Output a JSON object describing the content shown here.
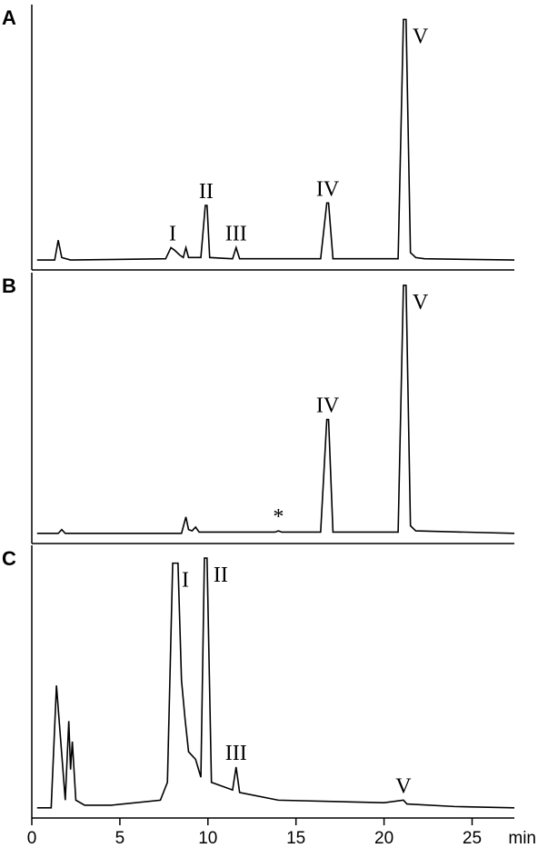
{
  "chart_data": [
    {
      "type": "line",
      "panel_label": "A",
      "xlim": [
        0,
        27.4
      ],
      "ylim": [
        -4,
        103
      ],
      "x": [
        0.3,
        1.3,
        1.5,
        1.7,
        2.2,
        7.6,
        7.9,
        8.1,
        8.4,
        8.6,
        8.75,
        8.9,
        9.6,
        9.85,
        9.95,
        10.1,
        11.4,
        11.6,
        11.8,
        12.5,
        16.4,
        16.75,
        16.85,
        17.1,
        20.8,
        21.1,
        21.25,
        21.5,
        21.8,
        22.3,
        27.4
      ],
      "series": [
        {
          "color": "#000000",
          "values": [
            0,
            0,
            8,
            1,
            0,
            0.5,
            5,
            4,
            2,
            1,
            5,
            1,
            1,
            22,
            22,
            1,
            0.5,
            5,
            0.5,
            0.5,
            0.5,
            23,
            23,
            0.5,
            0.5,
            97,
            97,
            3,
            1,
            0.5,
            0
          ]
        }
      ],
      "annotations": [
        {
          "text": "I",
          "x": 8.0
        },
        {
          "text": "II",
          "x": 9.9
        },
        {
          "text": "III",
          "x": 11.6
        },
        {
          "text": "IV",
          "x": 16.8
        },
        {
          "text": "V",
          "x": 21.2
        }
      ]
    },
    {
      "type": "line",
      "panel_label": "B",
      "xlim": [
        0,
        27.4
      ],
      "ylim": [
        -4,
        103
      ],
      "x": [
        0.3,
        1.5,
        1.7,
        1.9,
        8.5,
        8.75,
        8.9,
        9.1,
        9.3,
        9.5,
        13.8,
        14,
        14.2,
        16.4,
        16.75,
        16.85,
        17.1,
        20.8,
        21.1,
        21.25,
        21.5,
        21.8,
        27.4
      ],
      "series": [
        {
          "color": "#000000",
          "values": [
            0,
            0,
            1.5,
            0,
            0,
            6.5,
            1.5,
            1,
            2.5,
            0.5,
            0.5,
            1,
            0.5,
            0.5,
            45,
            45,
            0.5,
            0.5,
            98,
            98,
            3,
            1,
            0
          ]
        }
      ],
      "annotations": [
        {
          "text": "*",
          "x": 14.0
        },
        {
          "text": "IV",
          "x": 16.8
        },
        {
          "text": "V",
          "x": 21.2
        }
      ]
    },
    {
      "type": "line",
      "panel_label": "C",
      "xlim": [
        0,
        27.4
      ],
      "ylim": [
        -4,
        103
      ],
      "xticks": [
        0,
        5,
        10,
        15,
        20,
        25
      ],
      "xlabel": "min",
      "x": [
        0.3,
        1.1,
        1.4,
        1.6,
        1.9,
        2.1,
        2.2,
        2.3,
        2.5,
        3,
        4.5,
        7.3,
        7.7,
        8.0,
        8.3,
        8.5,
        8.7,
        8.9,
        9.3,
        9.6,
        9.8,
        9.95,
        10.2,
        11.4,
        11.6,
        11.8,
        14,
        20,
        21.1,
        21.3,
        24,
        27.4
      ],
      "series": [
        {
          "color": "#000000",
          "values": [
            0,
            0,
            48,
            30,
            3,
            34,
            15,
            26,
            3,
            1,
            1,
            3,
            10,
            96,
            96,
            50,
            35,
            22,
            19,
            12,
            98,
            98,
            10,
            7,
            16,
            6,
            3,
            2,
            3,
            1.5,
            0.5,
            0
          ]
        }
      ],
      "annotations": [
        {
          "text": "I",
          "x": 8.1
        },
        {
          "text": "II",
          "x": 9.9
        },
        {
          "text": "III",
          "x": 11.6
        },
        {
          "text": "V",
          "x": 21.1
        }
      ]
    }
  ]
}
